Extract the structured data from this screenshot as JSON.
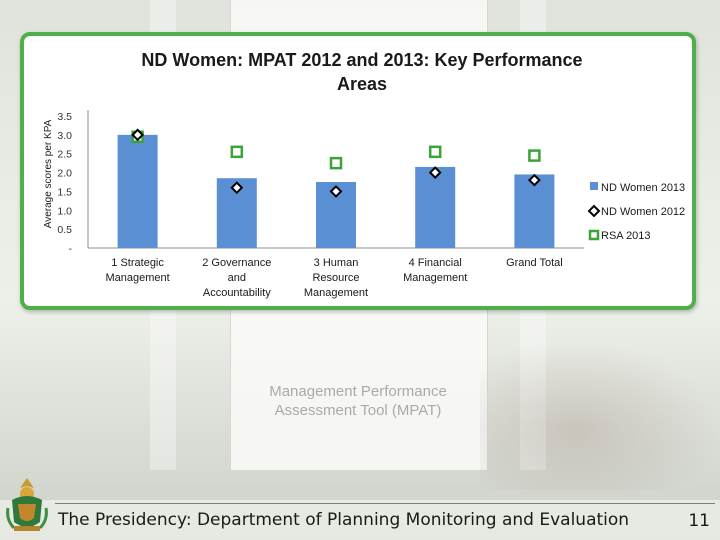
{
  "slide": {
    "footer": "The Presidency: Department of Planning Monitoring and Evaluation",
    "page_number": "11",
    "background_caption": "Management Performance Assessment Tool (MPAT)",
    "frame_color": "#4fb04a"
  },
  "chart_data": {
    "type": "bar",
    "title": "ND Women: MPAT 2012 and 2013: Key Performance Areas",
    "ylabel": "Average scores per KPA",
    "xlabel": "",
    "ylim": [
      0,
      3.5
    ],
    "yticks": [
      "-",
      "0.5",
      "1.0",
      "1.5",
      "2.0",
      "2.5",
      "3.0",
      "3.5"
    ],
    "grid": false,
    "legend_position": "right",
    "categories": [
      [
        "1 Strategic",
        "Management"
      ],
      [
        "2 Governance",
        "and",
        "Accountability"
      ],
      [
        "3 Human",
        "Resource",
        "Management"
      ],
      [
        "4 Financial",
        "Management"
      ],
      [
        "Grand Total"
      ]
    ],
    "series": [
      {
        "name": "ND Women 2013",
        "kind": "bar",
        "color": "#5b8fd4",
        "values": [
          3.0,
          1.85,
          1.75,
          2.15,
          1.95
        ]
      },
      {
        "name": "ND Women 2012",
        "kind": "diamond-marker",
        "color": "#000000",
        "values": [
          3.0,
          1.6,
          1.5,
          2.0,
          1.8
        ]
      },
      {
        "name": "RSA 2013",
        "kind": "square-marker",
        "color": "#3aa33a",
        "values": [
          2.95,
          2.55,
          2.25,
          2.55,
          2.45
        ]
      }
    ]
  }
}
